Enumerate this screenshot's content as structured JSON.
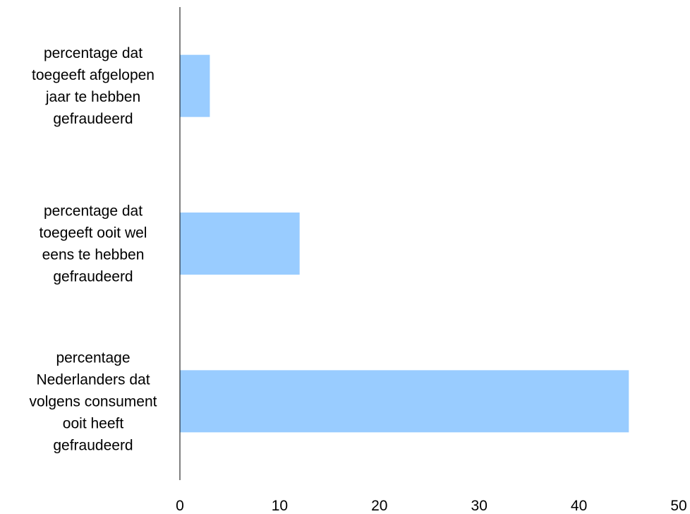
{
  "chart_data": {
    "type": "bar",
    "orientation": "horizontal",
    "title": "",
    "xlabel": "",
    "ylabel": "",
    "categories": [
      [
        "percentage dat",
        "toegeeft afgelopen",
        "jaar te hebben",
        "gefraudeerd"
      ],
      [
        "percentage dat",
        "toegeeft ooit wel",
        "eens te hebben",
        "gefraudeerd"
      ],
      [
        "percentage",
        "Nederlanders dat",
        "volgens consument",
        "ooit heeft",
        "gefraudeerd"
      ]
    ],
    "values": [
      3,
      12,
      45
    ],
    "xlim": [
      0,
      50
    ],
    "xticks": [
      0,
      10,
      20,
      30,
      40,
      50
    ],
    "grid": false,
    "legend": "none",
    "bar_color": "#99ccff",
    "axis_color": "#000000"
  }
}
